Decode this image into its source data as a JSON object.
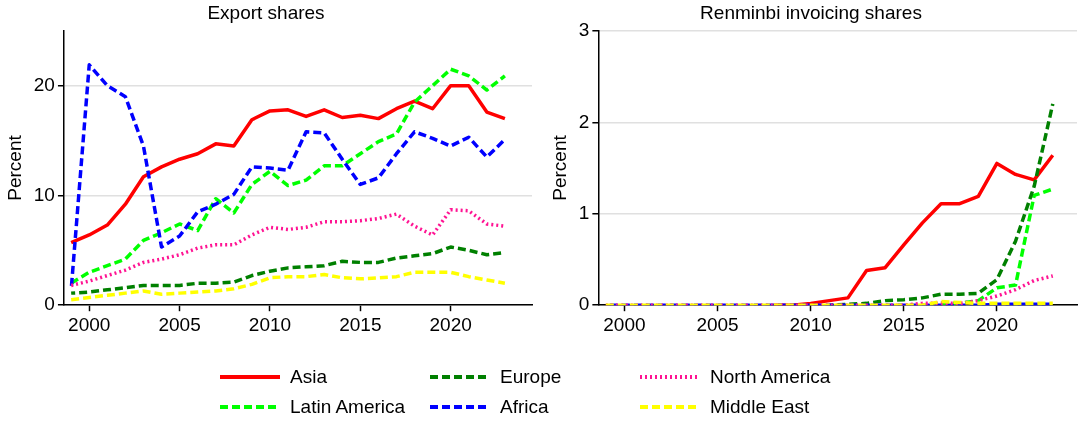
{
  "chart_data": [
    {
      "type": "line",
      "title": "Export shares",
      "ylabel": "Percent",
      "x": [
        1999,
        2000,
        2001,
        2002,
        2003,
        2004,
        2005,
        2006,
        2007,
        2008,
        2009,
        2010,
        2011,
        2012,
        2013,
        2014,
        2015,
        2016,
        2017,
        2018,
        2019,
        2020,
        2021,
        2022,
        2023
      ],
      "xlim": [
        1998.6,
        2024.5
      ],
      "xticks": [
        2000,
        2005,
        2010,
        2015,
        2020
      ],
      "ylim": [
        0,
        25
      ],
      "yticks": [
        0,
        10,
        20
      ],
      "grid": "y",
      "legend": "bottom",
      "marker": "none",
      "series": [
        {
          "name": "Asia",
          "color": "#ff0000",
          "line_style": "solid",
          "values": [
            5.7,
            6.4,
            7.3,
            9.2,
            11.7,
            12.6,
            13.3,
            13.8,
            14.7,
            14.5,
            16.9,
            17.7,
            17.8,
            17.2,
            17.8,
            17.1,
            17.3,
            17.0,
            17.9,
            18.6,
            17.9,
            20.0,
            20.0,
            17.6,
            17.0
          ]
        },
        {
          "name": "Latin America",
          "color": "#00ff00",
          "line_style": "dashed",
          "values": [
            2.0,
            3.0,
            3.6,
            4.2,
            5.9,
            6.6,
            7.4,
            6.8,
            9.7,
            8.4,
            11.0,
            12.2,
            10.9,
            11.4,
            12.7,
            12.7,
            13.8,
            14.9,
            15.6,
            18.5,
            20.0,
            21.5,
            20.9,
            19.6,
            20.9
          ]
        },
        {
          "name": "Europe",
          "color": "#008000",
          "line_style": "dashed",
          "values": [
            1.1,
            1.2,
            1.4,
            1.6,
            1.8,
            1.8,
            1.8,
            2.0,
            2.0,
            2.1,
            2.7,
            3.1,
            3.4,
            3.5,
            3.6,
            4.0,
            3.9,
            3.9,
            4.3,
            4.5,
            4.7,
            5.3,
            5.0,
            4.6,
            4.8
          ]
        },
        {
          "name": "Africa",
          "color": "#0000ff",
          "line_style": "dashed",
          "values": [
            1.4,
            21.9,
            20.0,
            19.0,
            14.5,
            5.3,
            6.3,
            8.5,
            9.2,
            10.1,
            12.6,
            12.5,
            12.3,
            15.8,
            15.7,
            13.3,
            11.0,
            11.6,
            13.8,
            15.8,
            15.2,
            14.5,
            15.3,
            13.5,
            15.1
          ]
        },
        {
          "name": "North America",
          "color": "#ff1493",
          "line_style": "dotted",
          "values": [
            1.8,
            2.2,
            2.7,
            3.2,
            3.9,
            4.2,
            4.6,
            5.2,
            5.5,
            5.5,
            6.4,
            7.1,
            6.9,
            7.1,
            7.6,
            7.6,
            7.7,
            7.9,
            8.3,
            7.2,
            6.4,
            8.7,
            8.6,
            7.4,
            7.2
          ]
        },
        {
          "name": "Middle East",
          "color": "#ffff00",
          "line_style": "dashed",
          "values": [
            0.5,
            0.7,
            0.9,
            1.1,
            1.3,
            1.0,
            1.1,
            1.2,
            1.3,
            1.5,
            1.9,
            2.5,
            2.6,
            2.6,
            2.8,
            2.5,
            2.4,
            2.5,
            2.6,
            3.0,
            3.0,
            3.0,
            2.6,
            2.3,
            2.0
          ]
        }
      ]
    },
    {
      "type": "line",
      "title": "Renminbi invoicing shares",
      "ylabel": "Percent",
      "x": [
        1999,
        2000,
        2001,
        2002,
        2003,
        2004,
        2005,
        2006,
        2007,
        2008,
        2009,
        2010,
        2011,
        2012,
        2013,
        2014,
        2015,
        2016,
        2017,
        2018,
        2019,
        2020,
        2021,
        2022,
        2023
      ],
      "xlim": [
        1998.6,
        2024.3
      ],
      "xticks": [
        2000,
        2005,
        2010,
        2015,
        2020
      ],
      "ylim": [
        0,
        3
      ],
      "yticks": [
        0,
        1,
        2,
        3
      ],
      "grid": "y",
      "legend": "bottom",
      "marker": "none",
      "series": [
        {
          "name": "Asia",
          "color": "#ff0000",
          "line_style": "solid",
          "values": [
            null,
            null,
            null,
            null,
            null,
            null,
            null,
            null,
            null,
            0,
            0,
            0.02,
            0.05,
            0.08,
            0.38,
            0.41,
            0.66,
            0.9,
            1.11,
            1.11,
            1.19,
            1.55,
            1.43,
            1.37,
            1.64
          ]
        },
        {
          "name": "Latin America",
          "color": "#00ff00",
          "line_style": "dashed",
          "values": [
            null,
            null,
            null,
            null,
            null,
            null,
            null,
            null,
            null,
            null,
            null,
            null,
            null,
            null,
            null,
            null,
            null,
            null,
            0.02,
            0.02,
            0.05,
            0.19,
            0.22,
            1.2,
            1.27
          ]
        },
        {
          "name": "Europe",
          "color": "#008000",
          "line_style": "dashed",
          "values": [
            null,
            null,
            null,
            null,
            null,
            null,
            null,
            null,
            null,
            null,
            null,
            null,
            0,
            0.01,
            0.02,
            0.05,
            0.06,
            0.08,
            0.12,
            0.12,
            0.13,
            0.28,
            0.7,
            1.3,
            2.2
          ]
        },
        {
          "name": "Africa",
          "color": "#0000ff",
          "line_style": "dashed",
          "values": [
            0,
            0,
            0,
            0,
            0,
            0,
            0,
            0,
            0,
            0,
            0,
            0,
            0,
            0,
            0,
            0,
            0,
            0,
            0,
            0,
            0,
            0.01,
            0.01,
            0.01,
            0.01
          ]
        },
        {
          "name": "North America",
          "color": "#ff1493",
          "line_style": "dotted",
          "values": [
            0,
            0,
            0,
            0,
            0,
            0,
            0,
            0,
            0,
            0,
            0,
            0,
            0,
            0,
            0,
            0,
            0,
            0.02,
            0.02,
            0.02,
            0.05,
            0.1,
            0.17,
            0.27,
            0.32
          ]
        },
        {
          "name": "Middle East",
          "color": "#ffff00",
          "line_style": "dashed",
          "values": [
            0,
            0,
            0,
            0,
            0,
            0,
            0,
            0,
            0,
            0,
            0,
            0,
            0,
            0,
            0,
            0,
            0,
            0,
            0.04,
            0.03,
            0.02,
            0.02,
            0.02,
            0.02,
            0.02
          ]
        }
      ]
    }
  ]
}
